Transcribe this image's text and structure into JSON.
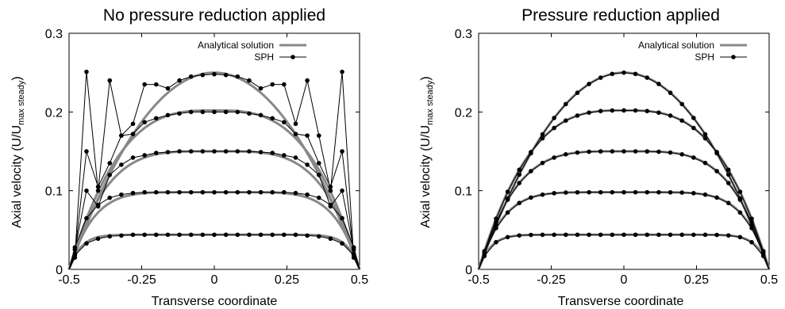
{
  "chart_data": [
    {
      "type": "line",
      "title": "No pressure reduction applied",
      "xlabel": "Transverse coordinate",
      "ylabel": "Axial velocity (U/U",
      "ylabel_sub": "max steady",
      "ylabel_close": ")",
      "xlim": [
        -0.5,
        0.5
      ],
      "ylim": [
        0,
        0.3
      ],
      "xticks": [
        "-0.5",
        "-0.25",
        "0",
        "0.25",
        "0.5"
      ],
      "yticks": [
        "0",
        "0.1",
        "0.2",
        "0.3"
      ],
      "legend_position": "top-right",
      "series": [
        {
          "name": "Analytical solution",
          "style": "thick-gray-line",
          "color": "#888888",
          "curves": [
            {
              "peak": 0.044,
              "exponent": 12
            },
            {
              "peak": 0.098,
              "exponent": 6
            },
            {
              "peak": 0.15,
              "exponent": 4
            },
            {
              "peak": 0.202,
              "exponent": 3
            },
            {
              "peak": 0.25,
              "exponent": 2
            }
          ]
        },
        {
          "name": "SPH",
          "style": "black-line-points",
          "color": "#000000",
          "curves": [
            {
              "x": [
                -0.5,
                -0.48,
                -0.44,
                -0.4,
                -0.36,
                -0.32,
                -0.28,
                -0.24,
                -0.2,
                -0.16,
                -0.12,
                -0.08,
                -0.04,
                0,
                0.04,
                0.08,
                0.12,
                0.16,
                0.2,
                0.24,
                0.28,
                0.32,
                0.36,
                0.4,
                0.44,
                0.48,
                0.5
              ],
              "y": [
                0,
                0.018,
                0.033,
                0.039,
                0.042,
                0.043,
                0.044,
                0.044,
                0.044,
                0.044,
                0.044,
                0.044,
                0.044,
                0.044,
                0.044,
                0.044,
                0.044,
                0.044,
                0.044,
                0.044,
                0.044,
                0.043,
                0.042,
                0.039,
                0.033,
                0.018,
                0
              ]
            },
            {
              "x": [
                -0.5,
                -0.48,
                -0.44,
                -0.4,
                -0.36,
                -0.32,
                -0.28,
                -0.24,
                -0.2,
                -0.16,
                -0.12,
                -0.08,
                -0.04,
                0,
                0.04,
                0.08,
                0.12,
                0.16,
                0.2,
                0.24,
                0.28,
                0.32,
                0.36,
                0.4,
                0.44,
                0.48,
                0.5
              ],
              "y": [
                0,
                0.028,
                0.065,
                0.082,
                0.091,
                0.095,
                0.097,
                0.098,
                0.098,
                0.098,
                0.098,
                0.098,
                0.098,
                0.098,
                0.098,
                0.098,
                0.098,
                0.098,
                0.098,
                0.098,
                0.097,
                0.095,
                0.091,
                0.082,
                0.065,
                0.028,
                0
              ]
            },
            {
              "x": [
                -0.5,
                -0.48,
                -0.44,
                -0.4,
                -0.36,
                -0.32,
                -0.28,
                -0.24,
                -0.2,
                -0.16,
                -0.12,
                -0.08,
                -0.04,
                0,
                0.04,
                0.08,
                0.12,
                0.16,
                0.2,
                0.24,
                0.28,
                0.32,
                0.36,
                0.4,
                0.44,
                0.48,
                0.5
              ],
              "y": [
                0,
                0.025,
                0.1,
                0.08,
                0.12,
                0.133,
                0.142,
                0.145,
                0.148,
                0.149,
                0.15,
                0.15,
                0.15,
                0.15,
                0.15,
                0.15,
                0.15,
                0.149,
                0.148,
                0.145,
                0.142,
                0.133,
                0.12,
                0.08,
                0.1,
                0.025,
                0
              ]
            },
            {
              "x": [
                -0.5,
                -0.48,
                -0.44,
                -0.4,
                -0.36,
                -0.32,
                -0.28,
                -0.24,
                -0.2,
                -0.16,
                -0.12,
                -0.08,
                -0.04,
                0,
                0.04,
                0.08,
                0.12,
                0.16,
                0.2,
                0.24,
                0.28,
                0.32,
                0.36,
                0.4,
                0.44,
                0.48,
                0.5
              ],
              "y": [
                0,
                0.02,
                0.15,
                0.105,
                0.135,
                0.17,
                0.172,
                0.187,
                0.192,
                0.196,
                0.198,
                0.2,
                0.2,
                0.2,
                0.2,
                0.2,
                0.198,
                0.196,
                0.192,
                0.187,
                0.172,
                0.17,
                0.135,
                0.105,
                0.15,
                0.02,
                0
              ]
            },
            {
              "x": [
                -0.5,
                -0.48,
                -0.44,
                -0.4,
                -0.36,
                -0.32,
                -0.28,
                -0.24,
                -0.2,
                -0.16,
                -0.12,
                -0.08,
                -0.04,
                0,
                0.04,
                0.08,
                0.12,
                0.16,
                0.2,
                0.24,
                0.28,
                0.32,
                0.36,
                0.4,
                0.44,
                0.48,
                0.5
              ],
              "y": [
                0,
                0.015,
                0.251,
                0.1,
                0.24,
                0.17,
                0.185,
                0.235,
                0.235,
                0.23,
                0.24,
                0.245,
                0.247,
                0.248,
                0.247,
                0.245,
                0.24,
                0.23,
                0.235,
                0.235,
                0.185,
                0.24,
                0.17,
                0.1,
                0.251,
                0.015,
                0
              ]
            }
          ]
        }
      ]
    },
    {
      "type": "line",
      "title": "Pressure reduction applied",
      "xlabel": "Transverse coordinate",
      "ylabel": "Axial velocity (U/U",
      "ylabel_sub": "max steady",
      "ylabel_close": ")",
      "xlim": [
        -0.5,
        0.5
      ],
      "ylim": [
        0,
        0.3
      ],
      "xticks": [
        "-0.5",
        "-0.25",
        "0",
        "0.25",
        "0.5"
      ],
      "yticks": [
        "0",
        "0.1",
        "0.2",
        "0.3"
      ],
      "legend_position": "top-right",
      "series": [
        {
          "name": "Analytical solution",
          "style": "thick-gray-line",
          "color": "#888888",
          "curves": [
            {
              "peak": 0.044,
              "exponent": 12
            },
            {
              "peak": 0.098,
              "exponent": 6
            },
            {
              "peak": 0.15,
              "exponent": 4
            },
            {
              "peak": 0.202,
              "exponent": 3
            },
            {
              "peak": 0.25,
              "exponent": 2
            }
          ]
        },
        {
          "name": "SPH",
          "style": "black-line-points",
          "color": "#000000",
          "curves": [
            {
              "peak": 0.044,
              "exponent": 12
            },
            {
              "peak": 0.098,
              "exponent": 6
            },
            {
              "peak": 0.15,
              "exponent": 4
            },
            {
              "peak": 0.202,
              "exponent": 3
            },
            {
              "peak": 0.25,
              "exponent": 2
            }
          ],
          "x": [
            -0.48,
            -0.44,
            -0.4,
            -0.36,
            -0.32,
            -0.28,
            -0.24,
            -0.2,
            -0.16,
            -0.12,
            -0.08,
            -0.04,
            0,
            0.04,
            0.08,
            0.12,
            0.16,
            0.2,
            0.24,
            0.28,
            0.32,
            0.36,
            0.4,
            0.44,
            0.48
          ]
        }
      ]
    }
  ]
}
